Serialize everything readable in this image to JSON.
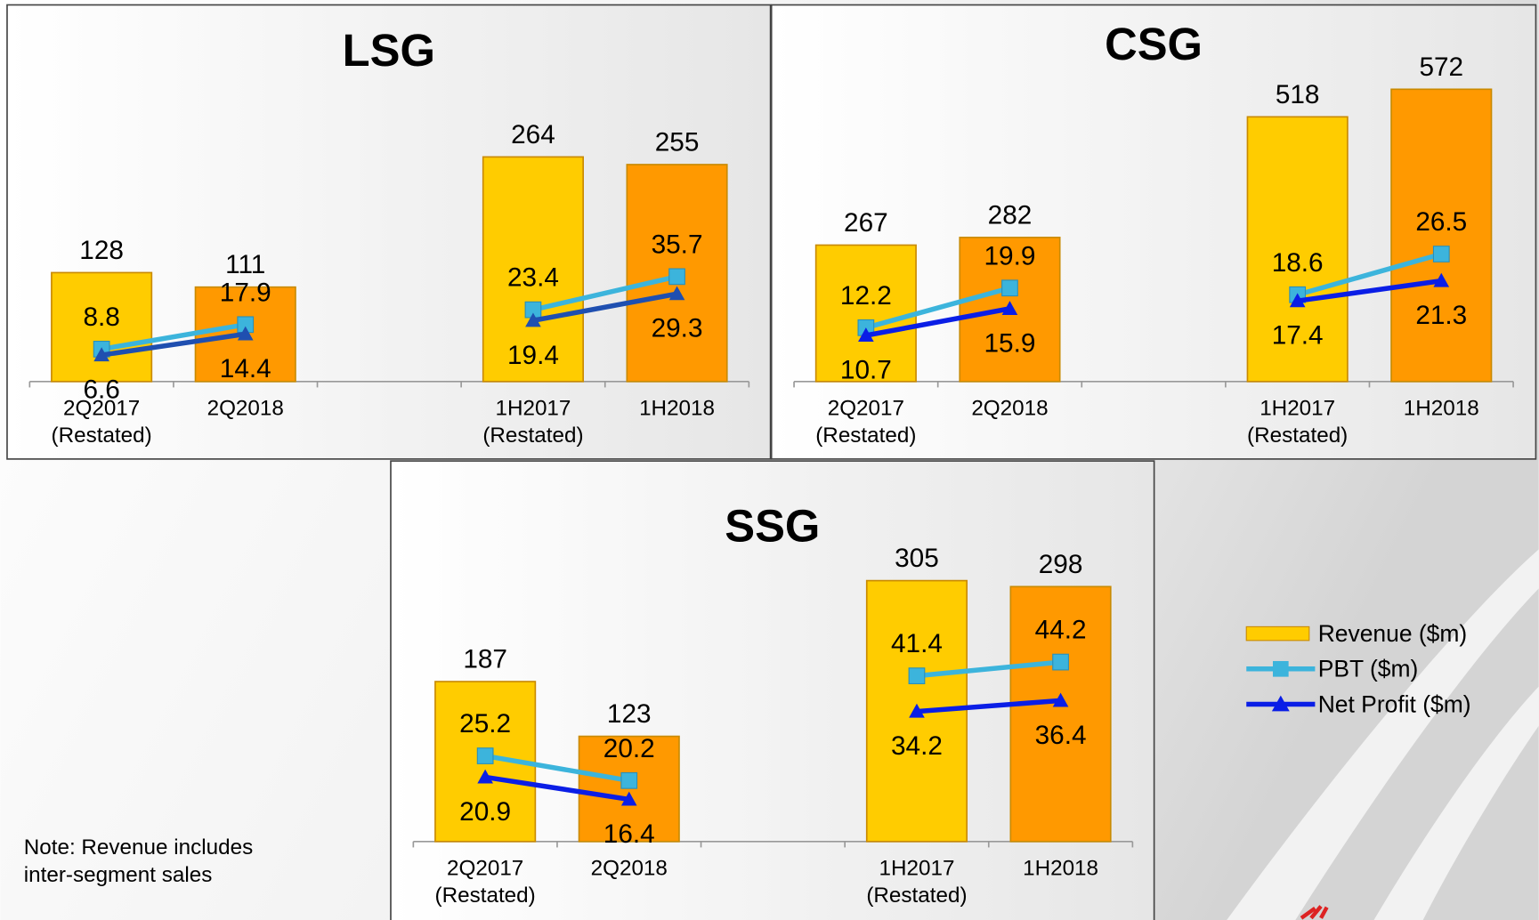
{
  "chart_data": [
    {
      "type": "bar",
      "title": "LSG",
      "categories": [
        "2Q2017\n(Restated)",
        "2Q2018",
        null,
        "1H2017\n(Restated)",
        "1H2018"
      ],
      "series": [
        {
          "name": "Revenue ($m)",
          "color": "#ffcc00",
          "colors": [
            "#ffcc00",
            "#ff9900",
            null,
            "#ffcc00",
            "#ff9900"
          ],
          "values": [
            128,
            111,
            null,
            264,
            255
          ]
        },
        {
          "name": "PBT ($m)",
          "color": "#3cb4dc",
          "values": [
            8.8,
            17.9,
            null,
            23.4,
            35.7
          ]
        },
        {
          "name": "Net Profit ($m)",
          "color": "#1f4fb0",
          "values": [
            6.6,
            14.4,
            null,
            19.4,
            29.3
          ]
        }
      ]
    },
    {
      "type": "bar",
      "title": "CSG",
      "categories": [
        "2Q2017\n(Restated)",
        "2Q2018",
        null,
        "1H2017\n(Restated)",
        "1H2018"
      ],
      "series": [
        {
          "name": "Revenue ($m)",
          "color": "#ffcc00",
          "colors": [
            "#ffcc00",
            "#ff9900",
            null,
            "#ffcc00",
            "#ff9900"
          ],
          "values": [
            267,
            282,
            null,
            518,
            572
          ]
        },
        {
          "name": "PBT ($m)",
          "color": "#3cb4dc",
          "values": [
            12.2,
            19.9,
            null,
            18.6,
            26.5
          ]
        },
        {
          "name": "Net Profit ($m)",
          "color": "#0a1ee6",
          "values": [
            10.7,
            15.9,
            null,
            17.4,
            21.3
          ]
        }
      ]
    },
    {
      "type": "bar",
      "title": "SSG",
      "categories": [
        "2Q2017\n(Restated)",
        "2Q2018",
        null,
        "1H2017\n(Restated)",
        "1H2018"
      ],
      "series": [
        {
          "name": "Revenue ($m)",
          "color": "#ffcc00",
          "colors": [
            "#ffcc00",
            "#ff9900",
            null,
            "#ffcc00",
            "#ff9900"
          ],
          "values": [
            187,
            123,
            null,
            305,
            298
          ]
        },
        {
          "name": "PBT ($m)",
          "color": "#3cb4dc",
          "values": [
            25.2,
            20.2,
            null,
            41.4,
            44.2
          ]
        },
        {
          "name": "Net Profit ($m)",
          "color": "#0a1ee6",
          "values": [
            20.9,
            16.4,
            null,
            34.2,
            36.4
          ]
        }
      ]
    }
  ],
  "note": [
    "Note: Revenue includes",
    "inter-segment sales"
  ]
}
